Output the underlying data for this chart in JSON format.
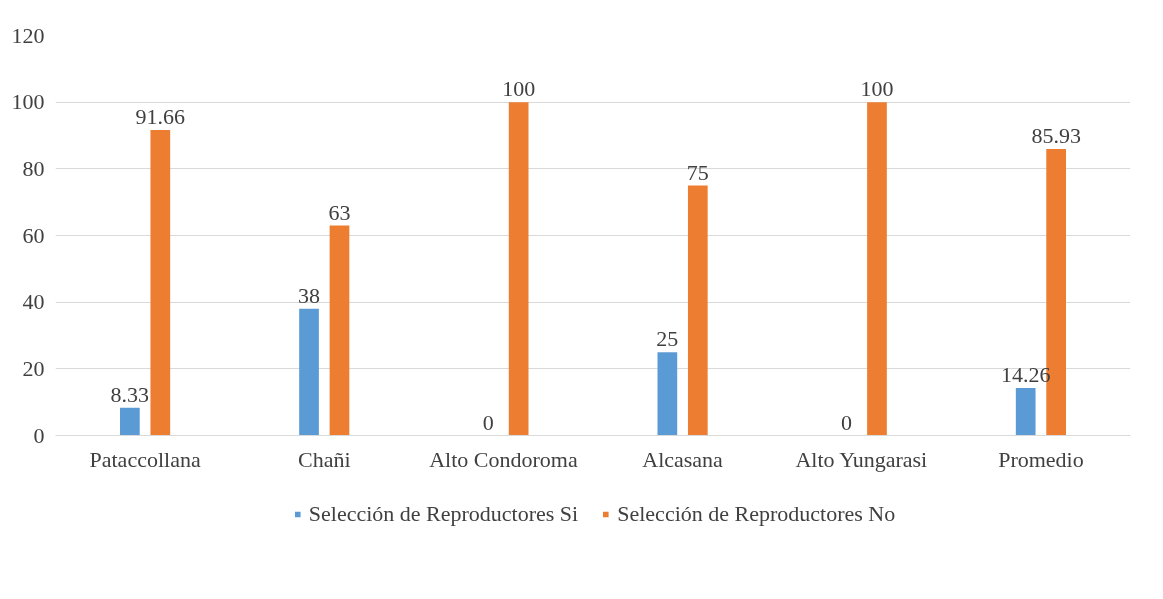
{
  "chart_data": {
    "type": "bar",
    "categories": [
      "Pataccollana",
      "Chañi",
      "Alto Condoroma",
      "Alcasana",
      "Alto Yungarasi",
      "Promedio"
    ],
    "series": [
      {
        "name": "Selección de Reproductores Si",
        "color": "#5b9bd5",
        "values": [
          8.33,
          38,
          0,
          25,
          0,
          14.26
        ]
      },
      {
        "name": "Selección de Reproductores No",
        "color": "#ed7d31",
        "values": [
          91.66,
          63,
          100,
          75,
          100,
          85.93
        ]
      }
    ],
    "ylim": [
      0,
      120
    ],
    "yticks": [
      0,
      20,
      40,
      60,
      80,
      100,
      120
    ],
    "grid": "y",
    "legend": "bottom",
    "data_labels": true
  }
}
